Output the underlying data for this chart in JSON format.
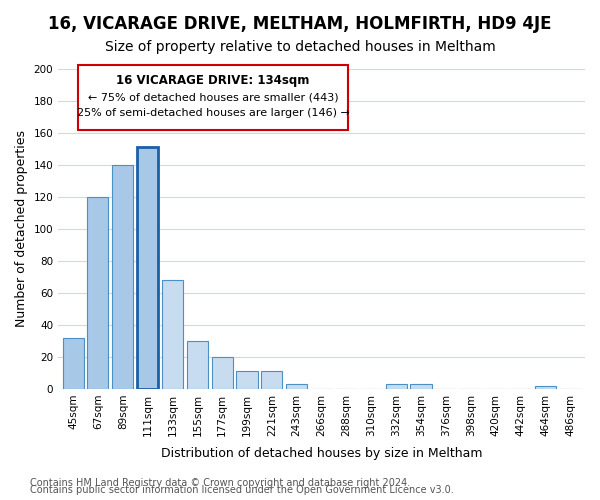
{
  "title": "16, VICARAGE DRIVE, MELTHAM, HOLMFIRTH, HD9 4JE",
  "subtitle": "Size of property relative to detached houses in Meltham",
  "xlabel": "Distribution of detached houses by size in Meltham",
  "ylabel": "Number of detached properties",
  "bar_labels": [
    "45sqm",
    "67sqm",
    "89sqm",
    "111sqm",
    "133sqm",
    "155sqm",
    "177sqm",
    "199sqm",
    "221sqm",
    "243sqm",
    "266sqm",
    "288sqm",
    "310sqm",
    "332sqm",
    "354sqm",
    "376sqm",
    "398sqm",
    "420sqm",
    "442sqm",
    "464sqm",
    "486sqm"
  ],
  "bar_values": [
    32,
    120,
    140,
    151,
    68,
    30,
    20,
    11,
    11,
    3,
    0,
    0,
    0,
    3,
    3,
    0,
    0,
    0,
    0,
    2,
    0
  ],
  "bar_colors_light": "#c8dcf0",
  "bar_colors_dark": "#4a90c4",
  "highlight_index": 3,
  "annotation_title": "16 VICARAGE DRIVE: 134sqm",
  "annotation_line1": "← 75% of detached houses are smaller (443)",
  "annotation_line2": "25% of semi-detached houses are larger (146) →",
  "annotation_box_color": "#ffffff",
  "annotation_border_color": "#cc0000",
  "ylim": [
    0,
    200
  ],
  "yticks": [
    0,
    20,
    40,
    60,
    80,
    100,
    120,
    140,
    160,
    180,
    200
  ],
  "footer1": "Contains HM Land Registry data © Crown copyright and database right 2024.",
  "footer2": "Contains public sector information licensed under the Open Government Licence v3.0.",
  "bg_color": "#ffffff",
  "grid_color": "#d0d8e8",
  "title_fontsize": 12,
  "subtitle_fontsize": 10,
  "axis_label_fontsize": 9,
  "tick_fontsize": 7.5,
  "footer_fontsize": 7
}
